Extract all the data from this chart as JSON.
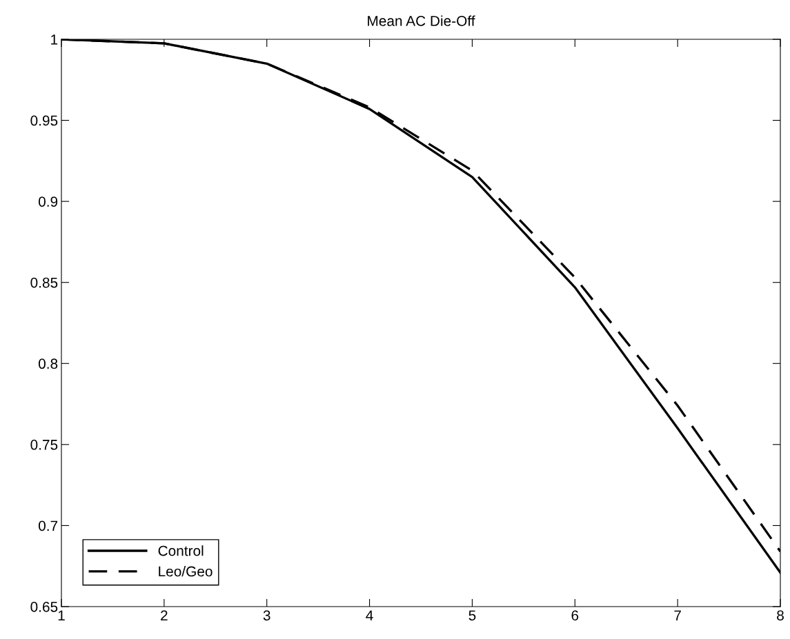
{
  "chart_data": {
    "type": "line",
    "title": "Mean AC Die-Off",
    "x": [
      1,
      2,
      3,
      4,
      5,
      6,
      7,
      8
    ],
    "series": [
      {
        "name": "Control",
        "color": "#000000",
        "line_style": "solid",
        "values": [
          1.0,
          0.9975,
          0.985,
          0.957,
          0.915,
          0.847,
          0.76,
          0.671
        ]
      },
      {
        "name": "Leo/Geo",
        "color": "#000000",
        "line_style": "dashed",
        "values": [
          1.0,
          0.9975,
          0.985,
          0.958,
          0.919,
          0.853,
          0.774,
          0.684
        ]
      }
    ],
    "xlim": [
      1,
      8
    ],
    "xticks": [
      1,
      2,
      3,
      4,
      5,
      6,
      7,
      8
    ],
    "ylim": [
      0.65,
      1
    ],
    "yticks": [
      0.65,
      0.7,
      0.75,
      0.8,
      0.85,
      0.9,
      0.95,
      1
    ],
    "grid": false,
    "legend": "bottom left",
    "marker": "none"
  }
}
